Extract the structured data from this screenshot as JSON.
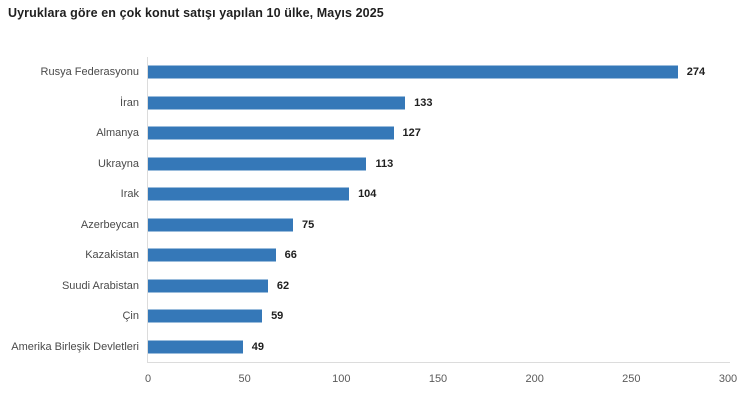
{
  "title": "Uyruklara göre en çok konut satışı yapılan 10 ülke, Mayıs 2025",
  "chart_data": {
    "type": "bar",
    "orientation": "horizontal",
    "title": "Uyruklara göre en çok konut satışı yapılan 10 ülke, Mayıs 2025",
    "categories": [
      "Rusya Federasyonu",
      "İran",
      "Almanya",
      "Ukrayna",
      "Irak",
      "Azerbeycan",
      "Kazakistan",
      "Suudi Arabistan",
      "Çin",
      "Amerika Birleşik Devletleri"
    ],
    "values": [
      274,
      133,
      127,
      113,
      104,
      75,
      66,
      62,
      59,
      49
    ],
    "xlabel": "",
    "ylabel": "",
    "xlim": [
      0,
      300
    ],
    "xticks": [
      0,
      50,
      100,
      150,
      200,
      250,
      300
    ],
    "grid": false,
    "legend": false,
    "value_labels": true,
    "bar_color": "#3578b8",
    "axis_color": "#dcdcdc"
  }
}
